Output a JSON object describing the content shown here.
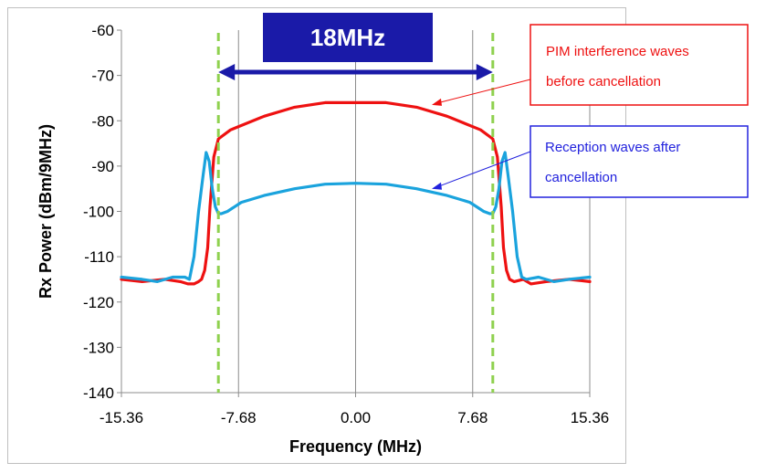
{
  "chart_data": {
    "type": "line",
    "xlabel": "Frequency (MHz)",
    "ylabel": "Rx Power (dBm/9MHz)",
    "xlim": [
      -15.36,
      15.36
    ],
    "ylim": [
      -140,
      -60
    ],
    "x_ticks": [
      "-15.36",
      "-7.68",
      "0.00",
      "7.68",
      "15.36"
    ],
    "x_tick_values": [
      -15.36,
      -7.68,
      0,
      7.68,
      15.36
    ],
    "y_ticks": [
      "-60",
      "-70",
      "-80",
      "-90",
      "-100",
      "-110",
      "-120",
      "-130",
      "-140"
    ],
    "y_tick_values": [
      -60,
      -70,
      -80,
      -90,
      -100,
      -110,
      -120,
      -130,
      -140
    ],
    "grid": "vertical",
    "series": [
      {
        "name": "PIM interference waves before cancellation",
        "color": "#ee1111",
        "x": [
          -15.36,
          -14,
          -12.5,
          -11.5,
          -11,
          -10.6,
          -10.3,
          -10.1,
          -9.9,
          -9.7,
          -9.55,
          -9.3,
          -9,
          -8.2,
          -6,
          -4,
          -2,
          0,
          2,
          4,
          6,
          8.2,
          9,
          9.3,
          9.55,
          9.7,
          9.9,
          10.1,
          10.4,
          11,
          11.5,
          12.5,
          14,
          15.36
        ],
        "y": [
          -115,
          -115.5,
          -115,
          -115.5,
          -116,
          -116,
          -115.5,
          -115,
          -113,
          -108,
          -99,
          -88,
          -84,
          -82,
          -79,
          -77,
          -76,
          -76,
          -76,
          -77,
          -79,
          -82,
          -84,
          -88,
          -99,
          -108,
          -113,
          -115,
          -115.5,
          -115,
          -116,
          -115.5,
          -115,
          -115.5
        ]
      },
      {
        "name": "Reception waves after cancellation",
        "color": "#1aa3dd",
        "x": [
          -15.36,
          -14,
          -13,
          -12,
          -11.2,
          -10.9,
          -10.6,
          -10.3,
          -10,
          -9.8,
          -9.6,
          -9.4,
          -9.2,
          -9,
          -8.8,
          -8.4,
          -7.5,
          -6,
          -4,
          -2,
          0,
          2,
          4,
          6,
          7.5,
          8.4,
          8.8,
          9,
          9.2,
          9.4,
          9.6,
          9.8,
          10,
          10.3,
          10.6,
          10.9,
          11.2,
          12,
          13,
          14,
          15.36
        ],
        "y": [
          -114.5,
          -115,
          -115.5,
          -114.5,
          -114.5,
          -115,
          -110,
          -100,
          -92,
          -87,
          -89,
          -95,
          -99,
          -100.5,
          -100.5,
          -100,
          -98,
          -96.5,
          -95,
          -94,
          -93.8,
          -94,
          -95,
          -96.5,
          -98,
          -100,
          -100.5,
          -100.5,
          -99,
          -95,
          -89,
          -87,
          -92,
          -100,
          -110,
          -114.5,
          -115,
          -114.5,
          -115.5,
          -115,
          -114.5
        ]
      }
    ],
    "markers": [
      {
        "type": "vline",
        "x": -9,
        "color": "#8fd14f",
        "style": "dashed"
      },
      {
        "type": "vline",
        "x": 9,
        "color": "#8fd14f",
        "style": "dashed"
      }
    ],
    "annotations": {
      "band_label": "18MHz",
      "band_range": [
        -9,
        9
      ],
      "band_color": "#1a1aa8",
      "callout_pim_line1": "PIM interference waves",
      "callout_pim_line2": "before cancellation",
      "callout_pim_color": "#ee1111",
      "callout_pim_points_to": {
        "x": 5,
        "y": -76.5
      },
      "callout_rx_line1": "Reception waves after",
      "callout_rx_line2": "cancellation",
      "callout_rx_color": "#2222dd",
      "callout_rx_points_to": {
        "x": 5,
        "y": -95
      }
    }
  }
}
